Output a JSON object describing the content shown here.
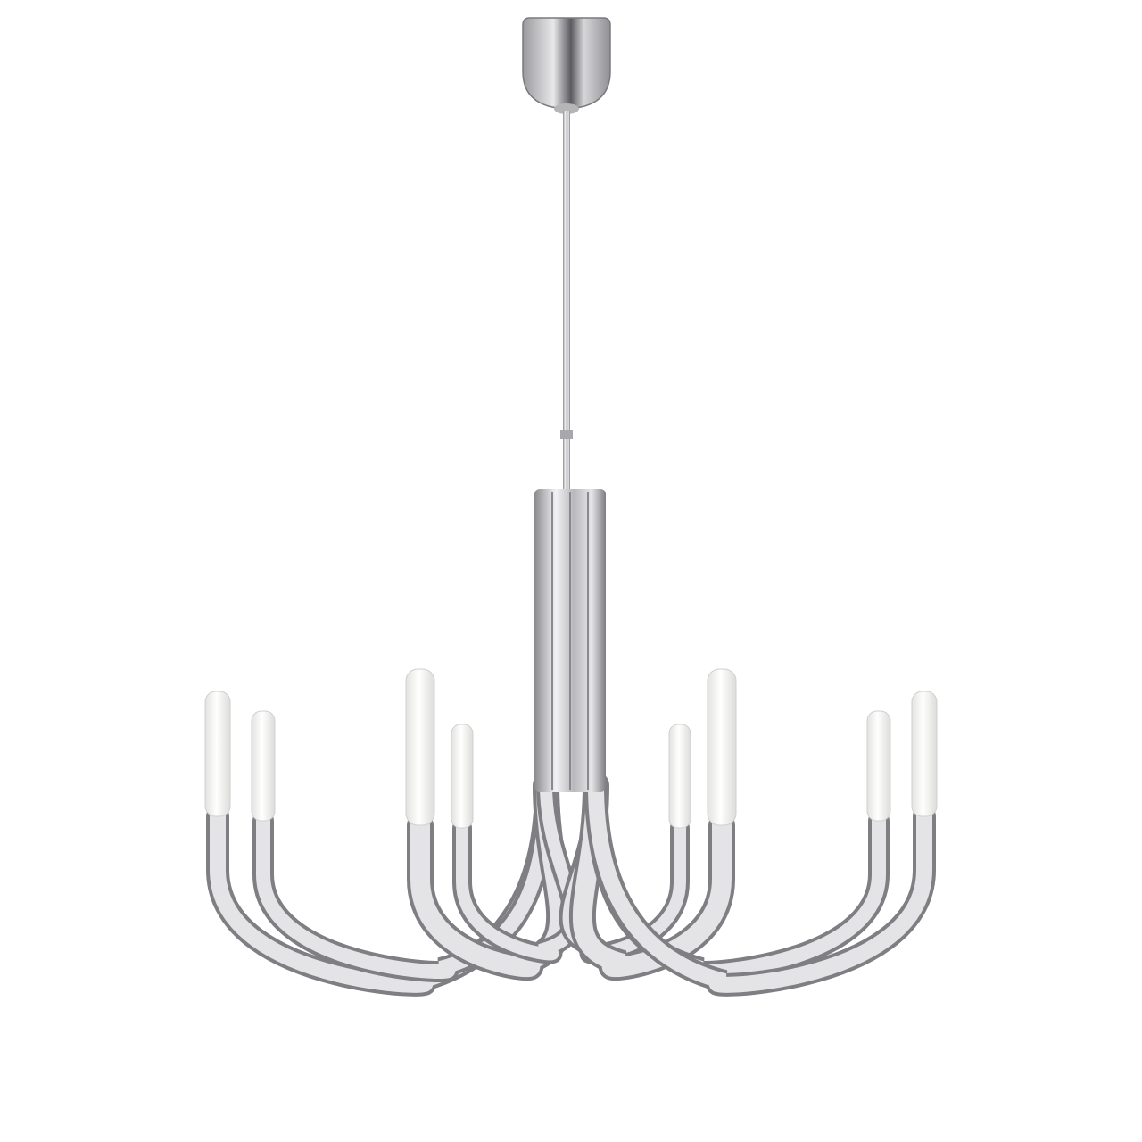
{
  "image": {
    "subject": "chandelier",
    "background_color": "#ffffff",
    "finish_color": "#c9c9cc",
    "shade_color": "#f4f4f2",
    "light_count": 8
  }
}
